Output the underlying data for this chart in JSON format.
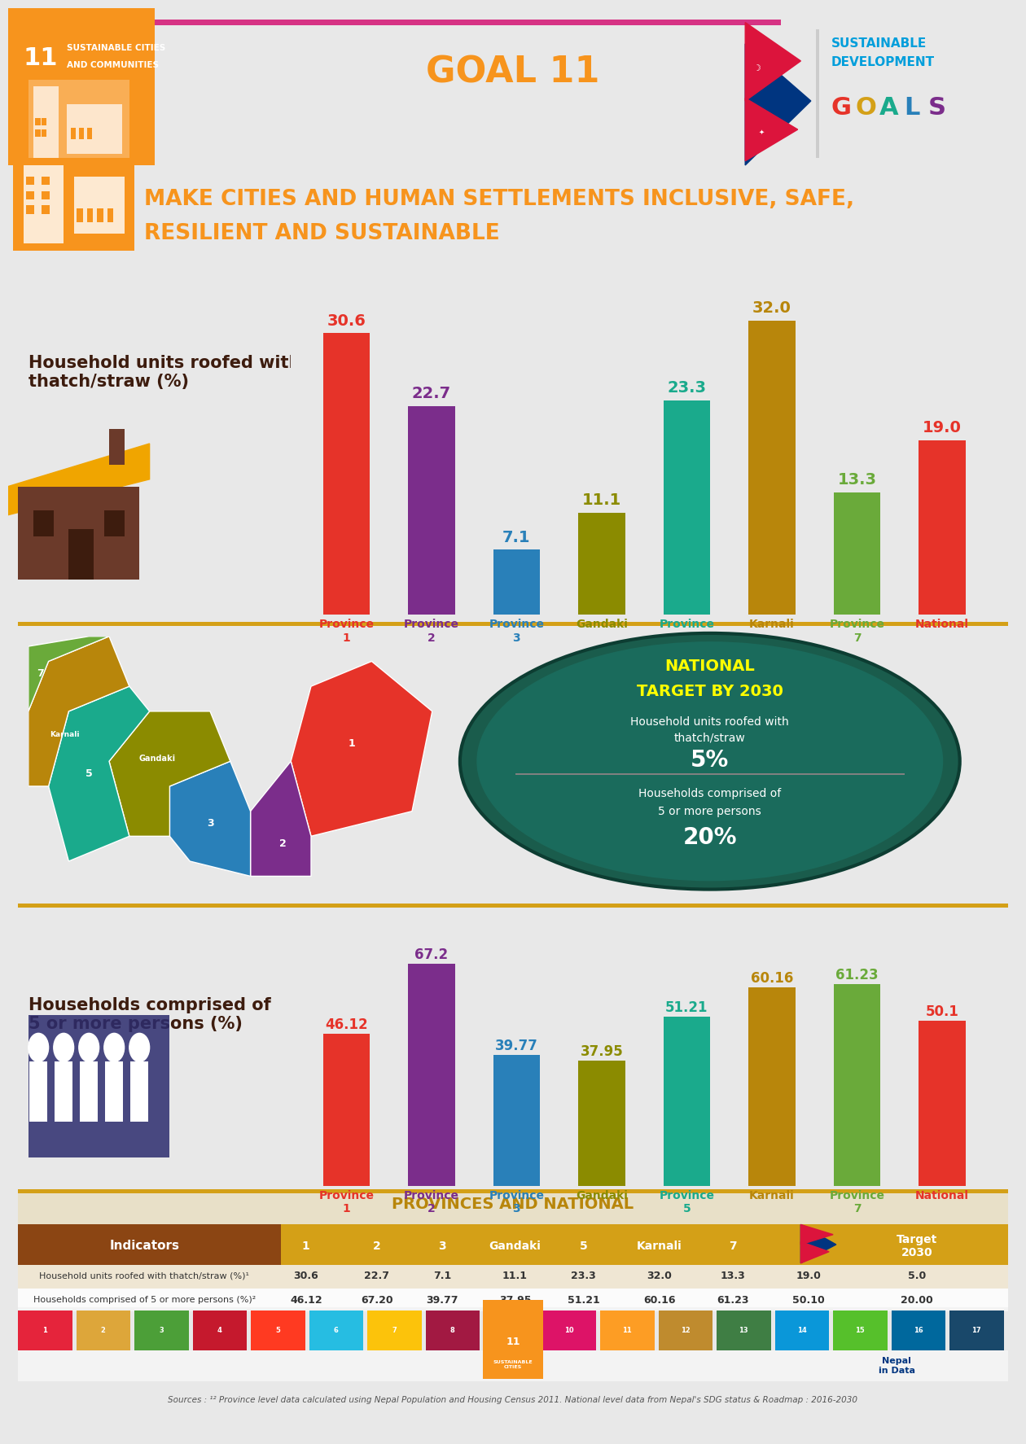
{
  "background_color": "#e8e8e8",
  "header_orange": "#f7941d",
  "header_text_color": "#f7941d",
  "title_line1": "MAKE CITIES AND HUMAN SETTLEMENTS INCLUSIVE, SAFE,",
  "title_line2": "RESILIENT AND SUSTAINABLE",
  "goal_text": "GOAL 11",
  "bar1_categories": [
    "Province\n1",
    "Province\n2",
    "Province\n3",
    "Gandaki",
    "Province\n5",
    "Karnali",
    "Province\n7",
    "National"
  ],
  "bar1_values": [
    30.6,
    22.7,
    7.1,
    11.1,
    23.3,
    32.0,
    13.3,
    19.0
  ],
  "bar1_colors": [
    "#e63329",
    "#7b2d8b",
    "#2980b9",
    "#8b8b00",
    "#1aaa8c",
    "#b8860b",
    "#6aaa3a",
    "#e63329"
  ],
  "bar1_label_colors": [
    "#e63329",
    "#7b2d8b",
    "#2980b9",
    "#8b8b00",
    "#1aaa8c",
    "#b8860b",
    "#6aaa3a",
    "#e63329"
  ],
  "bar2_categories": [
    "Province\n1",
    "Province\n2",
    "Province\n3",
    "Gandaki",
    "Province\n5",
    "Karnali",
    "Province\n7",
    "National"
  ],
  "bar2_values": [
    46.12,
    67.2,
    39.77,
    37.95,
    51.21,
    60.16,
    61.23,
    50.1
  ],
  "bar2_colors": [
    "#e63329",
    "#7b2d8b",
    "#2980b9",
    "#8b8b00",
    "#1aaa8c",
    "#b8860b",
    "#6aaa3a",
    "#e63329"
  ],
  "section1_title": "Household units roofed with\nthatch/straw (%)",
  "section2_title": "Households comprised of\n5 or more persons (%)",
  "national_target_title": "NATIONAL\nTARGET BY 2030",
  "national_target_line1": "Household units roofed with\nthatch/straw",
  "national_target_val1": "5%",
  "national_target_line2": "Households comprised of\n5 or more persons",
  "national_target_val2": "20%",
  "table_headers": [
    "Indicators",
    "1",
    "2",
    "3",
    "Gandaki",
    "5",
    "Karnali",
    "7",
    "",
    "Target\n2030"
  ],
  "table_row1": [
    "Household units roofed with thatch/straw (%)¹",
    "30.6",
    "22.7",
    "7.1",
    "11.1",
    "23.3",
    "32.0",
    "13.3",
    "19.0",
    "5.0"
  ],
  "table_row2": [
    "Households comprised of 5 or more persons (%)²",
    "46.12",
    "67.20",
    "39.77",
    "37.95",
    "51.21",
    "60.16",
    "61.23",
    "50.10",
    "20.00"
  ],
  "source_text": "Sources : ¹² Province level data calculated using Nepal Population and Housing Census 2011. National level data from Nepal's SDG status & Roadmap : 2016-2030",
  "provinces_national_header": "PROVINCES AND NATIONAL",
  "separator_color": "#d4a017",
  "teal_dark": "#1a6b5c",
  "section_title_color": "#3d1c0e"
}
